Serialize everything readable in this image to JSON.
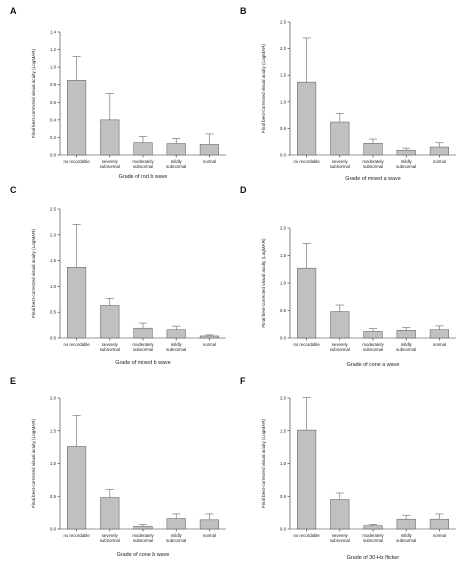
{
  "colors": {
    "bar_fill": "#c0c0c0",
    "bar_stroke": "#555555",
    "axis": "#333333"
  },
  "chart_data": [
    {
      "type": "bar",
      "panel": "A",
      "categories": [
        "no recordable",
        "severely subnormal",
        "moderately subnormal",
        "mildly subnormal",
        "normal"
      ],
      "values": [
        0.85,
        0.4,
        0.14,
        0.13,
        0.12
      ],
      "errors": [
        0.27,
        0.3,
        0.07,
        0.06,
        0.12
      ],
      "xlabel": "Grade of rod b wave",
      "ylabel": "Final best-corrected visual acuity (LogMAR)",
      "ylim": [
        0,
        1.4
      ],
      "yticks": [
        "0.0",
        "0.2",
        "0.4",
        "0.6",
        "0.8",
        "1.0",
        "1.2",
        "1.4"
      ]
    },
    {
      "type": "bar",
      "panel": "B",
      "categories": [
        "no recordable",
        "severely subnormal",
        "moderately subnormal",
        "mildly subnormal",
        "normal"
      ],
      "values": [
        1.37,
        0.62,
        0.22,
        0.09,
        0.15
      ],
      "errors": [
        0.83,
        0.16,
        0.08,
        0.04,
        0.08
      ],
      "xlabel": "Grade of mixed a wave",
      "ylabel": "Final best-corrected visual acuity (LogMAR)",
      "ylim": [
        0,
        2.5
      ],
      "yticks": [
        "0.0",
        "0.5",
        "1.0",
        "1.5",
        "2.0",
        "2.5"
      ]
    },
    {
      "type": "bar",
      "panel": "C",
      "categories": [
        "no recordable",
        "severely subnormal",
        "moderately subnormal",
        "mildly subnormal",
        "normal"
      ],
      "values": [
        1.37,
        0.63,
        0.19,
        0.16,
        0.04
      ],
      "errors": [
        0.83,
        0.14,
        0.1,
        0.07,
        0.02
      ],
      "xlabel": "Grade of mixed b wave",
      "ylabel": "Final best-corrected visual acuity (LogMAR)",
      "ylim": [
        0,
        2.5
      ],
      "yticks": [
        "0.0",
        "0.5",
        "1.0",
        "1.5",
        "2.0",
        "2.5"
      ]
    },
    {
      "type": "bar",
      "panel": "D",
      "categories": [
        "no recordable",
        "severely subnormal",
        "moderately subnormal",
        "mildly subnormal",
        "normal"
      ],
      "values": [
        1.27,
        0.48,
        0.12,
        0.14,
        0.15
      ],
      "errors": [
        0.45,
        0.12,
        0.05,
        0.05,
        0.07
      ],
      "xlabel": "Grade of cone a wave",
      "ylabel": "Final best-corrected visual acuity (LogMAR)",
      "ylim": [
        0,
        2.0
      ],
      "yticks": [
        "0.0",
        "0.5",
        "1.0",
        "1.5",
        "2.0"
      ]
    },
    {
      "type": "bar",
      "panel": "E",
      "categories": [
        "no recordable",
        "severely subnormal",
        "moderately subnormal",
        "mildly subnormal",
        "normal"
      ],
      "values": [
        1.26,
        0.48,
        0.04,
        0.16,
        0.14
      ],
      "errors": [
        0.47,
        0.12,
        0.03,
        0.07,
        0.09
      ],
      "xlabel": "Grade of cone b wave",
      "ylabel": "Final best-corrected visual acuity (LogMAR)",
      "ylim": [
        0,
        2.0
      ],
      "yticks": [
        "0.0",
        "0.5",
        "1.0",
        "1.5",
        "2.0"
      ]
    },
    {
      "type": "bar",
      "panel": "F",
      "categories": [
        "no recordable",
        "severely subnormal",
        "moderately subnormal",
        "mildly subnormal",
        "normal"
      ],
      "values": [
        1.51,
        0.45,
        0.05,
        0.15,
        0.15
      ],
      "errors": [
        0.5,
        0.1,
        0.02,
        0.06,
        0.08
      ],
      "xlabel": "Grade of 30-Hz flicker",
      "ylabel": "Final best-corrected visual acuity (LogMAR)",
      "ylim": [
        0,
        2.0
      ],
      "yticks": [
        "0.0",
        "0.5",
        "1.0",
        "1.5",
        "2.0"
      ]
    }
  ]
}
